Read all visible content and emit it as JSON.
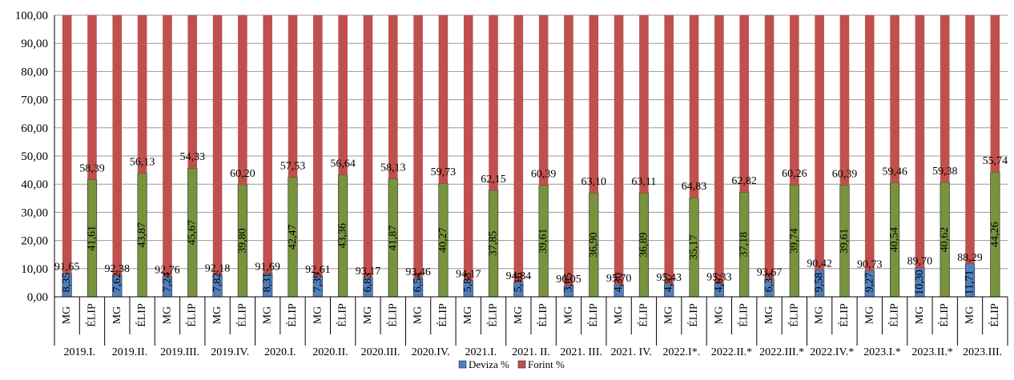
{
  "chart_data": {
    "type": "bar",
    "stacked": true,
    "title": "",
    "xlabel": "",
    "ylabel": "",
    "ylim": [
      0,
      100
    ],
    "y_ticks": [
      "0,00",
      "10,00",
      "20,00",
      "30,00",
      "40,00",
      "50,00",
      "60,00",
      "70,00",
      "80,00",
      "90,00",
      "100,00"
    ],
    "grid": true,
    "legend_position": "bottom",
    "groups": [
      "2019.I.",
      "2019.II.",
      "2019.III.",
      "2019.IV.",
      "2020.I.",
      "2020.II.",
      "2020.III.",
      "2020.IV.",
      "2021.I.",
      "2021. II.",
      "2021. III.",
      "2021. IV.",
      "2022.I*.",
      "2022.II.*",
      "2022.III.*",
      "2022.IV.*",
      "2023.I.*",
      "2023.II.*",
      "2023.III."
    ],
    "subcategories": [
      "MG",
      "ÉLIP"
    ],
    "colors": {
      "Deviza %": "#4f81bd",
      "Forint %": "#c0504d",
      "elip_deviza": "#77933c"
    },
    "series": [
      {
        "name": "Deviza %",
        "values": [
          8.35,
          41.61,
          7.62,
          43.87,
          7.24,
          45.67,
          7.82,
          39.8,
          8.31,
          42.47,
          7.39,
          43.36,
          6.83,
          41.87,
          6.54,
          40.27,
          5.83,
          37.85,
          5.16,
          39.61,
          3.95,
          36.9,
          4.3,
          36.89,
          4.57,
          35.17,
          4.67,
          37.18,
          6.33,
          39.74,
          9.58,
          39.61,
          9.27,
          40.54,
          10.3,
          40.62,
          11.71,
          44.26
        ],
        "labels": [
          "8,35",
          "41,61",
          "7,62",
          "43,87",
          "7,24",
          "45,67",
          "7,82",
          "39,80",
          "8,31",
          "42,47",
          "7,39",
          "43,36",
          "6,83",
          "41,87",
          "6,54",
          "40,27",
          "5,83",
          "37,85",
          "5,16",
          "39,61",
          "3,95",
          "36,90",
          "4,30",
          "36,89",
          "4,57",
          "35,17",
          "4,67",
          "37,18",
          "6,33",
          "39,74",
          "9,58",
          "39,61",
          "9,27",
          "40,54",
          "10,30",
          "40,62",
          "11,71",
          "44,26"
        ]
      },
      {
        "name": "Forint %",
        "values": [
          91.65,
          58.39,
          92.38,
          56.13,
          92.76,
          54.33,
          92.18,
          60.2,
          91.69,
          57.53,
          92.61,
          56.64,
          93.17,
          58.13,
          93.46,
          59.73,
          94.17,
          62.15,
          94.84,
          60.39,
          96.05,
          63.1,
          95.7,
          63.11,
          95.43,
          64.83,
          95.33,
          62.82,
          93.67,
          60.26,
          90.42,
          60.39,
          90.73,
          59.46,
          89.7,
          59.38,
          88.29,
          55.74
        ],
        "labels": [
          "91,65",
          "58,39",
          "92,38",
          "56,13",
          "92,76",
          "54,33",
          "92,18",
          "60,20",
          "91,69",
          "57,53",
          "92,61",
          "56,64",
          "93,17",
          "58,13",
          "93,46",
          "59,73",
          "94,17",
          "62,15",
          "94,84",
          "60,39",
          "96,05",
          "63,10",
          "95,70",
          "63,11",
          "95,43",
          "64,83",
          "95,33",
          "62,82",
          "93,67",
          "60,26",
          "90,42",
          "60,39",
          "90,73",
          "59,46",
          "89,70",
          "59,38",
          "88,29",
          "55,74"
        ]
      }
    ],
    "legend": [
      {
        "name": "Deviza %",
        "color": "#4f81bd"
      },
      {
        "name": "Forint %",
        "color": "#c0504d"
      }
    ]
  }
}
